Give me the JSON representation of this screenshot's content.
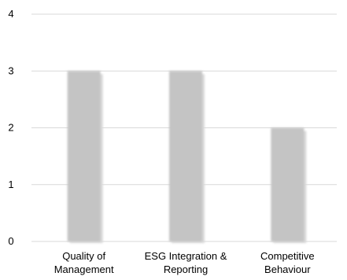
{
  "chart_data": {
    "type": "bar",
    "categories": [
      [
        "Quality of",
        "Management"
      ],
      [
        "ESG Integration &",
        "Reporting"
      ],
      [
        "Competitive",
        "Behaviour"
      ]
    ],
    "values": [
      3,
      3,
      2
    ],
    "ylim": [
      0,
      4
    ],
    "yticks": [
      "0",
      "1",
      "2",
      "3",
      "4"
    ],
    "grid": true,
    "legend": "none",
    "colors": {
      "bar": "#c4c4c4",
      "bar_shadow": "#d9d9d9",
      "grid": "#d9d9d9"
    }
  }
}
